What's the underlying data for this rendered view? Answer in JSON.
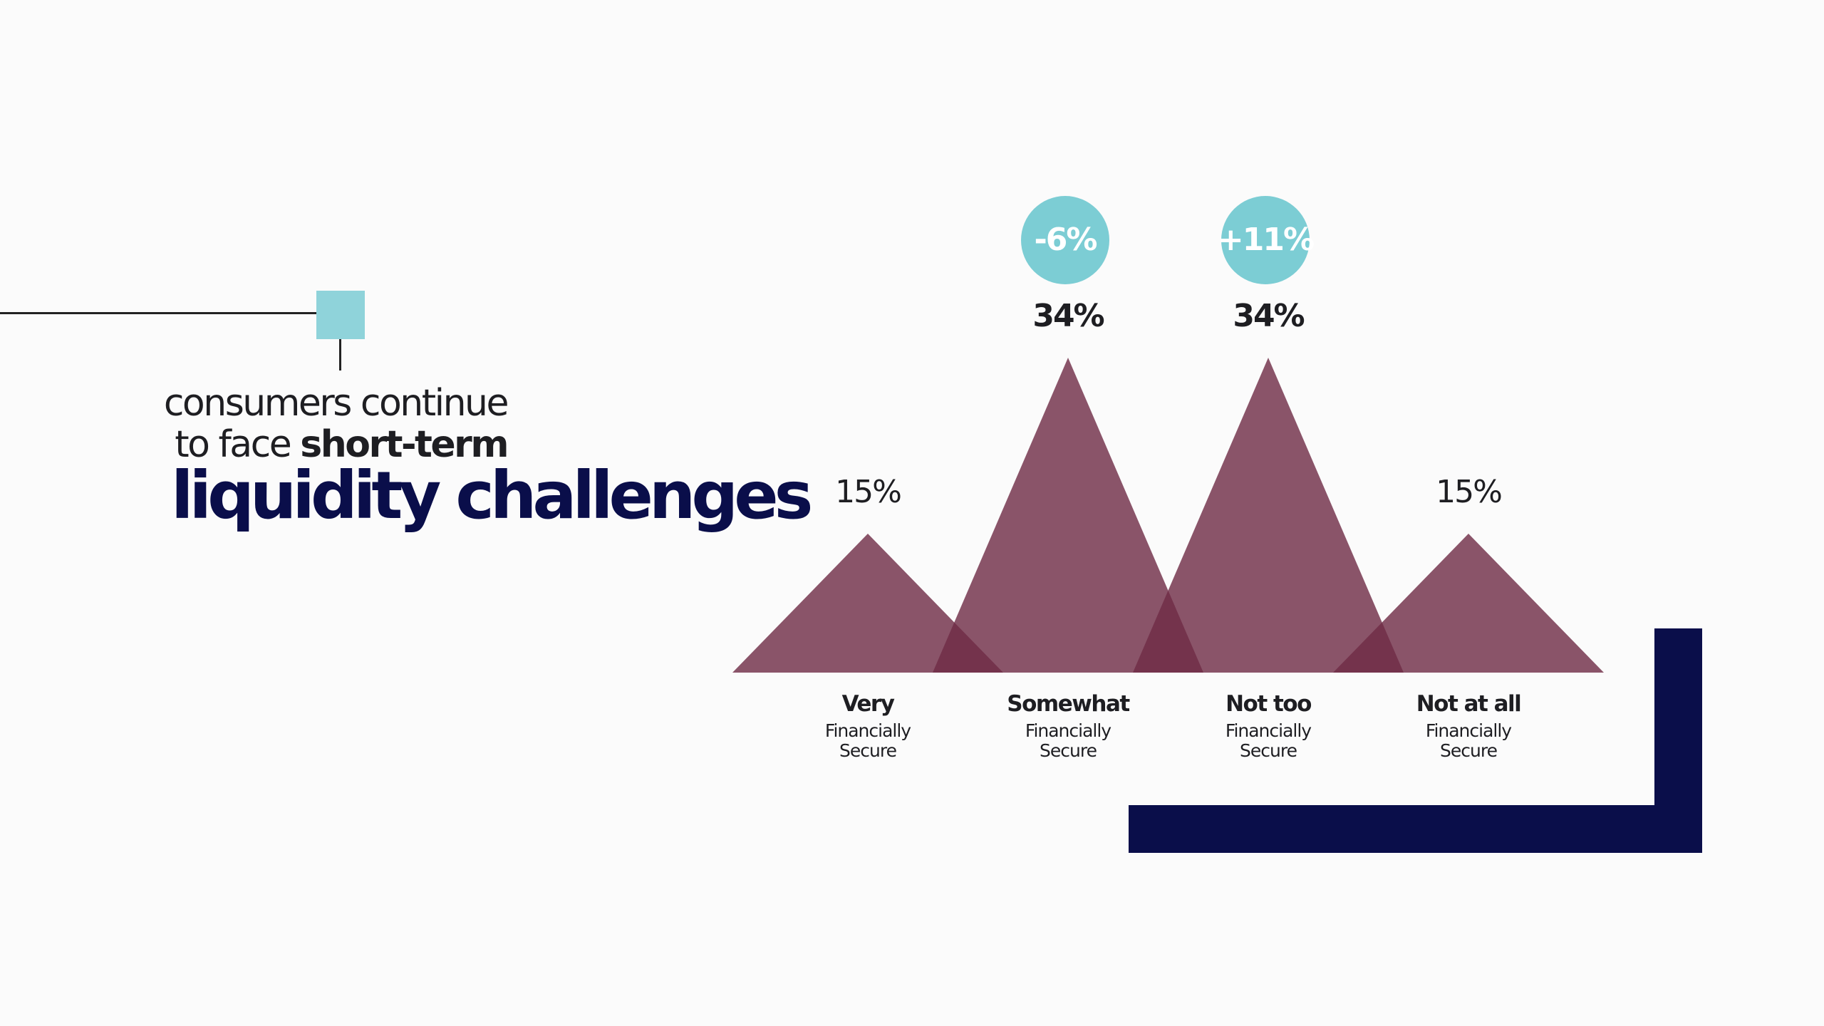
{
  "chart_data": {
    "type": "peak",
    "title_lines": [
      "consumers continue",
      "to face",
      "short-term",
      "liquidity challenges"
    ],
    "categories": [
      "Very",
      "Somewhat",
      "Not too",
      "Not at all"
    ],
    "category_sublabels": [
      "Financially Secure",
      "Financially Secure",
      "Financially Secure",
      "Financially Secure"
    ],
    "values": [
      15,
      34,
      34,
      15
    ],
    "value_labels": [
      "15%",
      "34%",
      "34%",
      "15%"
    ],
    "changes": [
      null,
      -6,
      11,
      null
    ],
    "change_labels": [
      null,
      "-6%",
      "+11%",
      null
    ],
    "color": "#6e2a45",
    "change_color": "#7ccdd4"
  }
}
